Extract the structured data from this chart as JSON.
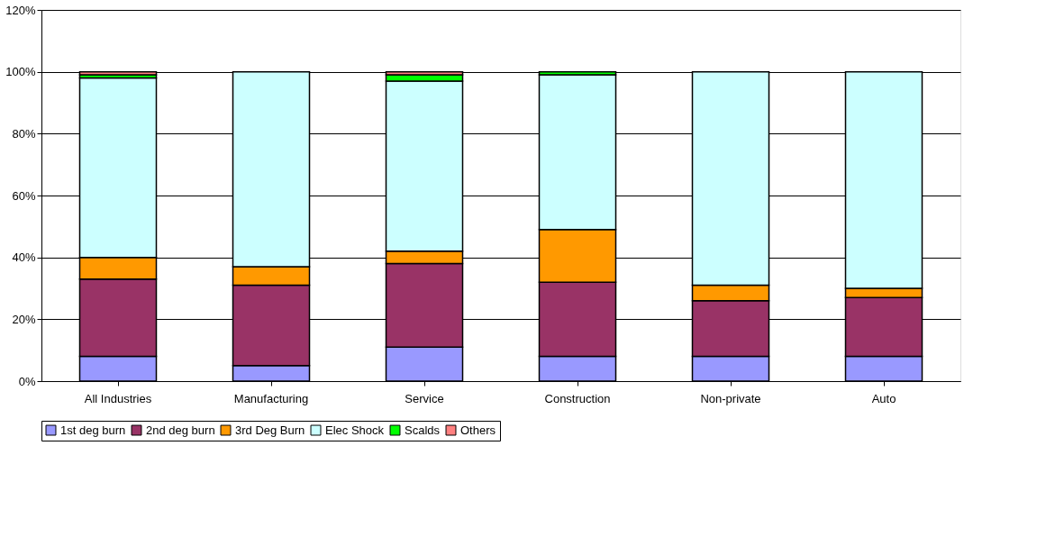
{
  "chart_data": {
    "type": "bar",
    "stacked": true,
    "categories": [
      "All Industries",
      "Manufacturing",
      "Service",
      "Construction",
      "Non-private",
      "Auto"
    ],
    "series": [
      {
        "name": "1st deg burn",
        "color": "#9999ff",
        "values": [
          8,
          5,
          11,
          8,
          8,
          8
        ]
      },
      {
        "name": "2nd deg burn",
        "color": "#993366",
        "values": [
          25,
          26,
          27,
          24,
          18,
          19
        ]
      },
      {
        "name": "3rd Deg Burn",
        "color": "#ff9900",
        "values": [
          7,
          6,
          4,
          17,
          5,
          3
        ]
      },
      {
        "name": "Elec Shock",
        "color": "#ccffff",
        "values": [
          58,
          63,
          55,
          50,
          69,
          70
        ]
      },
      {
        "name": "Scalds",
        "color": "#00ff00",
        "values": [
          1,
          null,
          2,
          1,
          null,
          null
        ]
      },
      {
        "name": "Others",
        "color": "#ff8080",
        "values": [
          1,
          null,
          1,
          null,
          null,
          null
        ]
      }
    ],
    "ylim": [
      0,
      120
    ],
    "yticks": [
      {
        "value": 0,
        "label": "0%"
      },
      {
        "value": 20,
        "label": "20%"
      },
      {
        "value": 40,
        "label": "40%"
      },
      {
        "value": 60,
        "label": "60%"
      },
      {
        "value": 80,
        "label": "80%"
      },
      {
        "value": 100,
        "label": "100%"
      },
      {
        "value": 120,
        "label": "120%"
      }
    ],
    "grid": "y",
    "legend": "bottom"
  }
}
